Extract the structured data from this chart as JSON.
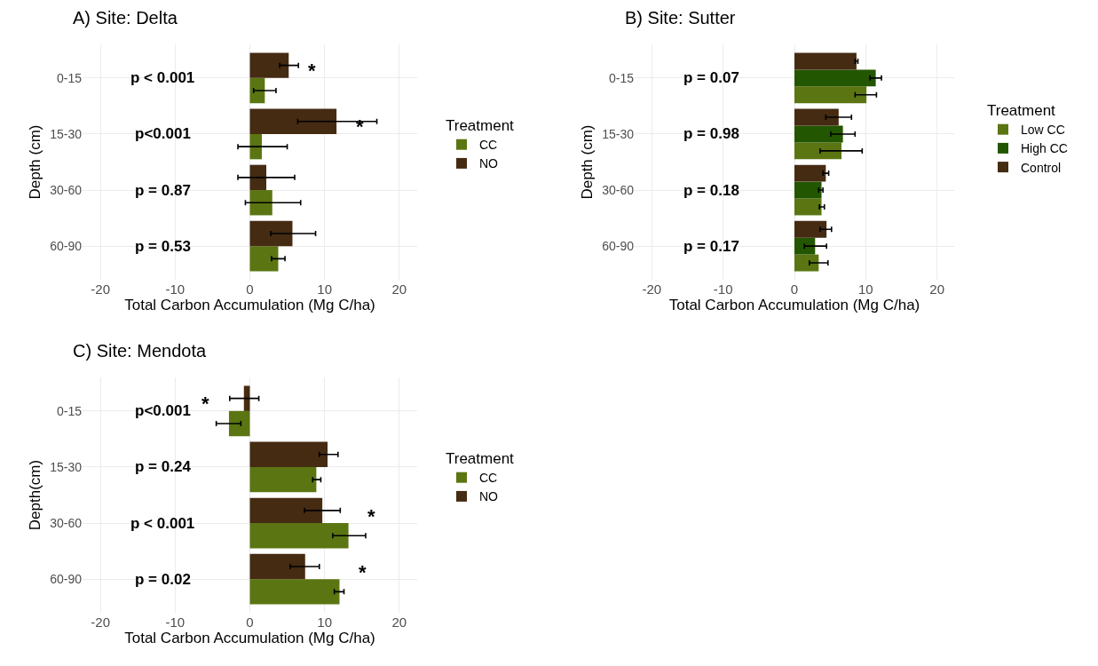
{
  "chart_data": [
    {
      "type": "bar",
      "orientation": "horizontal",
      "title": "A) Site: Delta",
      "xlabel": "Total Carbon Accumulation (Mg C/ha)",
      "ylabel": "Depth (cm)",
      "legend_title": "Treatment",
      "legend": "right",
      "grid": true,
      "categories": [
        "0-15",
        "15-30",
        "30-60",
        "60-90"
      ],
      "series": [
        {
          "name": "CC",
          "color": "#5b7512",
          "values": [
            2.0,
            1.6,
            3.0,
            3.8
          ],
          "errors": [
            [
              0.5,
              3.5
            ],
            [
              -1.6,
              5.0
            ],
            [
              -0.6,
              6.8
            ],
            [
              2.9,
              4.7
            ]
          ]
        },
        {
          "name": "NO",
          "color": "#452b12",
          "values": [
            5.2,
            11.6,
            2.2,
            5.7
          ],
          "errors": [
            [
              4.0,
              6.5
            ],
            [
              6.4,
              17.0
            ],
            [
              -1.6,
              6.0
            ],
            [
              2.8,
              8.8
            ]
          ]
        }
      ],
      "xlim": [
        -22.4,
        22.4
      ],
      "xticks": [
        -20,
        -10,
        0,
        10,
        20
      ],
      "annotations": [
        "p < 0.001",
        "p<0.001",
        "p = 0.87",
        "p = 0.53",
        {
          "text": "*",
          "x": 5.2,
          "y": "0-15"
        },
        {
          "text": "*",
          "x": 11.6,
          "y": "15-30"
        }
      ]
    },
    {
      "type": "bar",
      "orientation": "horizontal",
      "title": "B) Site: Sutter",
      "xlabel": "Total Carbon Accumulation (Mg C/ha)",
      "ylabel": "Depth (cm)",
      "legend_title": "Treatment",
      "legend": "right",
      "grid": true,
      "categories": [
        "0-15",
        "15-30",
        "30-60",
        "60-90"
      ],
      "series": [
        {
          "name": "Low CC",
          "color": "#5b7512",
          "values": [
            10.1,
            6.6,
            3.8,
            3.4
          ],
          "errors": [
            [
              8.5,
              11.5
            ],
            [
              3.6,
              9.5
            ],
            [
              3.5,
              4.2
            ],
            [
              2.1,
              4.7
            ]
          ]
        },
        {
          "name": "High CC",
          "color": "#235600",
          "values": [
            11.4,
            6.8,
            3.8,
            2.9
          ],
          "errors": [
            [
              10.6,
              12.2
            ],
            [
              5.1,
              8.5
            ],
            [
              3.4,
              4.0
            ],
            [
              1.4,
              4.5
            ]
          ]
        },
        {
          "name": "Control",
          "color": "#452b12",
          "values": [
            8.7,
            6.2,
            4.4,
            4.5
          ],
          "errors": [
            [
              8.5,
              8.9
            ],
            [
              4.4,
              8.0
            ],
            [
              4.0,
              4.8
            ],
            [
              3.6,
              5.2
            ]
          ]
        }
      ],
      "xlim": [
        -22.4,
        22.4
      ],
      "xticks": [
        -20,
        -10,
        0,
        10,
        20
      ],
      "annotations": [
        "p = 0.07",
        "p = 0.98",
        "p = 0.18",
        "p = 0.17"
      ]
    },
    {
      "type": "bar",
      "orientation": "horizontal",
      "title": "C) Site: Mendota",
      "xlabel": "Total Carbon Accumulation (Mg C/ha)",
      "ylabel": "Depth(cm)",
      "legend_title": "Treatment",
      "legend": "right",
      "grid": true,
      "categories": [
        "0-15",
        "15-30",
        "30-60",
        "60-90"
      ],
      "series": [
        {
          "name": "CC",
          "color": "#5b7512",
          "values": [
            -2.8,
            8.9,
            13.2,
            12.0
          ],
          "errors": [
            [
              -4.5,
              -1.2
            ],
            [
              8.4,
              9.5
            ],
            [
              11.1,
              15.5
            ],
            [
              11.3,
              12.6
            ]
          ]
        },
        {
          "name": "NO",
          "color": "#452b12",
          "values": [
            -0.8,
            10.4,
            9.7,
            7.4
          ],
          "errors": [
            [
              -2.7,
              1.2
            ],
            [
              9.3,
              11.8
            ],
            [
              7.3,
              12.1
            ],
            [
              5.4,
              9.3
            ]
          ]
        }
      ],
      "xlim": [
        -22.4,
        22.4
      ],
      "xticks": [
        -20,
        -10,
        0,
        10,
        20
      ],
      "annotations": [
        "p<0.001",
        "p = 0.24",
        "p < 0.001",
        "p = 0.02",
        {
          "text": "*",
          "x": -2.8,
          "y": "0-15"
        },
        {
          "text": "*",
          "x": 13.2,
          "y": "30-60"
        },
        {
          "text": "*",
          "x": 12.0,
          "y": "60-90"
        }
      ]
    }
  ]
}
